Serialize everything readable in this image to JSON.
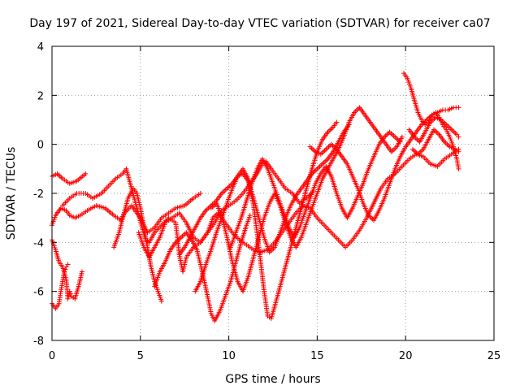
{
  "chart_data": {
    "type": "scatter",
    "title": "Day 197 of 2021, Sidereal Day-to-day VTEC variation (SDTVAR) for receiver ca07",
    "xlabel": "GPS time / hours",
    "ylabel": "SDTVAR / TECUs",
    "xlim": [
      0,
      25
    ],
    "ylim": [
      -8,
      4
    ],
    "xticks": [
      "0",
      "5",
      "10",
      "15",
      "20",
      "25"
    ],
    "yticks": [
      "-8",
      "-6",
      "-4",
      "-2",
      "0",
      "2",
      "4"
    ],
    "grid": true,
    "marker": "plus",
    "color": "#ff0000",
    "series": [
      {
        "x": [
          0.0,
          0.3,
          0.6,
          1.0,
          1.4,
          1.9
        ],
        "y": [
          -1.3,
          -1.2,
          -1.4,
          -1.6,
          -1.5,
          -1.2
        ]
      },
      {
        "x": [
          0.0,
          0.2,
          0.5,
          0.8,
          1.0,
          1.3,
          1.6,
          2.0,
          2.5,
          3.0,
          3.5,
          3.9,
          4.1,
          4.5,
          5.0,
          5.4,
          5.8,
          6.2,
          6.6,
          7.0,
          7.5,
          8.0,
          8.4
        ],
        "y": [
          -3.3,
          -2.9,
          -2.6,
          -2.7,
          -2.9,
          -3.0,
          -2.9,
          -2.7,
          -2.5,
          -2.6,
          -2.9,
          -3.1,
          -2.8,
          -2.5,
          -3.0,
          -3.6,
          -3.4,
          -3.0,
          -2.8,
          -2.6,
          -2.5,
          -2.2,
          -2.0
        ]
      },
      {
        "x": [
          0.0,
          0.2,
          0.4,
          0.6,
          0.8,
          0.9,
          1.0,
          1.1,
          1.3,
          1.5,
          1.7
        ],
        "y": [
          -3.9,
          -4.3,
          -4.8,
          -5.0,
          -5.5,
          -6.3,
          -6.0,
          -6.2,
          -6.3,
          -5.8,
          -5.2
        ]
      },
      {
        "x": [
          0.0,
          0.2,
          0.4,
          0.5,
          0.6,
          0.7,
          0.8,
          0.9
        ],
        "y": [
          -6.5,
          -6.7,
          -6.5,
          -6.0,
          -5.6,
          -5.2,
          -5.0,
          -4.9
        ]
      },
      {
        "x": [
          0.6,
          1.0,
          1.4,
          1.9,
          2.3,
          2.8,
          3.2,
          3.6,
          4.0,
          4.2,
          4.5,
          4.8,
          5.1,
          5.3,
          5.5,
          5.8,
          6.2,
          6.6,
          7.0,
          7.2,
          7.4,
          7.6,
          8.0,
          8.4,
          8.8,
          9.2,
          9.6,
          10.0,
          10.4,
          10.8,
          11.2,
          11.6,
          11.9,
          12.1,
          12.4,
          12.8,
          13.2,
          13.6,
          14.0,
          14.4,
          14.8
        ],
        "y": [
          -2.5,
          -2.2,
          -2.0,
          -2.0,
          -2.2,
          -2.0,
          -1.7,
          -1.4,
          -1.2,
          -1.0,
          -1.8,
          -2.6,
          -3.4,
          -3.9,
          -4.0,
          -3.6,
          -3.3,
          -3.0,
          -3.2,
          -4.5,
          -5.2,
          -4.6,
          -4.2,
          -4.0,
          -3.6,
          -3.2,
          -2.7,
          -2.5,
          -2.3,
          -2.0,
          -1.6,
          -1.2,
          -0.8,
          -0.7,
          -1.0,
          -1.4,
          -1.8,
          -2.0,
          -2.4,
          -2.2,
          -1.9
        ]
      },
      {
        "x": [
          3.5,
          3.8,
          4.0,
          4.3,
          4.6,
          4.8,
          5.0,
          5.2,
          5.4,
          5.6,
          5.8,
          6.0,
          6.2
        ],
        "y": [
          -4.2,
          -3.6,
          -3.0,
          -2.2,
          -1.8,
          -2.0,
          -2.6,
          -3.4,
          -4.2,
          -5.0,
          -5.6,
          -6.0,
          -6.4
        ]
      },
      {
        "x": [
          4.9,
          5.2,
          5.5,
          5.8,
          6.1,
          6.4,
          6.8,
          7.2,
          7.6,
          8.0,
          8.4,
          8.8,
          9.1,
          9.4,
          9.8,
          10.2,
          10.6,
          11.0,
          11.4,
          11.8,
          12.2,
          12.6,
          13.0,
          13.4,
          13.8,
          14.2,
          14.6,
          15.0,
          15.4,
          15.8,
          16.2,
          16.6,
          17.0,
          17.4,
          17.8,
          18.2,
          18.6,
          19.0,
          19.4,
          19.8,
          20.2,
          20.6,
          21.0,
          21.4,
          21.8,
          22.2,
          22.6,
          23.0
        ],
        "y": [
          -3.6,
          -4.2,
          -4.6,
          -4.2,
          -3.8,
          -3.2,
          -3.0,
          -2.8,
          -3.2,
          -3.8,
          -4.0,
          -3.6,
          -3.0,
          -2.8,
          -3.2,
          -3.6,
          -3.9,
          -4.1,
          -4.3,
          -4.4,
          -4.3,
          -4.0,
          -3.6,
          -3.2,
          -2.8,
          -2.5,
          -2.6,
          -3.0,
          -3.3,
          -3.6,
          -3.9,
          -4.2,
          -3.9,
          -3.5,
          -3.0,
          -2.4,
          -1.8,
          -1.4,
          -1.2,
          -0.9,
          -0.6,
          -0.4,
          -0.5,
          -0.8,
          -0.9,
          -0.6,
          -0.4,
          -0.2
        ]
      },
      {
        "x": [
          5.8,
          6.1,
          6.4,
          6.7,
          7.0,
          7.3,
          7.6,
          7.9,
          8.2,
          8.5,
          8.8,
          9.0,
          9.2,
          9.5,
          9.8,
          10.1,
          10.4,
          10.7,
          11.0,
          11.2
        ],
        "y": [
          -5.8,
          -5.2,
          -4.8,
          -4.3,
          -4.0,
          -3.8,
          -3.6,
          -3.9,
          -4.3,
          -5.2,
          -6.2,
          -6.9,
          -7.2,
          -6.8,
          -6.2,
          -5.6,
          -4.8,
          -4.0,
          -3.3,
          -2.9
        ]
      },
      {
        "x": [
          7.2,
          7.5,
          7.8,
          8.1,
          8.4,
          8.7,
          9.0,
          9.3,
          9.6,
          9.9,
          10.2,
          10.5,
          10.8,
          11.1,
          11.4,
          11.7,
          12.0,
          12.3,
          12.6,
          12.9,
          13.2,
          13.5,
          13.8,
          14.1,
          14.4,
          14.7,
          15.0,
          15.3,
          15.6,
          15.9,
          16.2,
          16.5,
          16.8
        ],
        "y": [
          -4.5,
          -4.2,
          -3.8,
          -3.4,
          -3.0,
          -2.7,
          -2.5,
          -2.3,
          -2.0,
          -1.8,
          -1.6,
          -1.3,
          -1.2,
          -1.5,
          -2.2,
          -3.0,
          -3.8,
          -4.4,
          -4.2,
          -3.6,
          -3.0,
          -2.5,
          -2.1,
          -1.8,
          -1.5,
          -1.2,
          -1.0,
          -0.8,
          -0.6,
          -0.3,
          0.1,
          0.5,
          0.8
        ]
      },
      {
        "x": [
          8.1,
          8.4,
          8.7,
          9.0,
          9.3,
          9.6,
          9.9,
          10.2,
          10.5,
          10.8,
          11.1,
          11.4,
          11.7,
          12.0,
          12.2,
          12.4,
          12.6,
          12.9,
          13.2,
          13.5,
          13.8,
          14.1,
          14.4,
          14.7,
          15.0,
          15.3,
          15.6,
          15.9,
          16.1
        ],
        "y": [
          -6.0,
          -5.6,
          -4.9,
          -4.3,
          -3.6,
          -3.0,
          -2.4,
          -1.8,
          -1.3,
          -1.0,
          -1.4,
          -2.5,
          -4.2,
          -6.0,
          -7.0,
          -7.1,
          -6.6,
          -5.8,
          -5.0,
          -4.2,
          -3.4,
          -2.6,
          -1.8,
          -1.0,
          -0.3,
          0.2,
          0.5,
          0.7,
          0.9
        ]
      },
      {
        "x": [
          9.0,
          9.3,
          9.6,
          9.9,
          10.2,
          10.5,
          10.8,
          11.1,
          11.4,
          11.7,
          12.0,
          12.3,
          12.6,
          12.9,
          13.2,
          13.5,
          13.8,
          14.1,
          14.4,
          14.7,
          15.0,
          15.3,
          15.6,
          15.9,
          16.2,
          16.5,
          16.8,
          17.1,
          17.4,
          17.7,
          18.0,
          18.3,
          18.6,
          18.9,
          19.2,
          19.5,
          19.8
        ],
        "y": [
          -2.6,
          -2.4,
          -2.9,
          -3.8,
          -4.8,
          -5.6,
          -6.0,
          -5.4,
          -4.6,
          -3.8,
          -3.0,
          -2.4,
          -2.0,
          -2.5,
          -3.2,
          -3.8,
          -4.2,
          -3.8,
          -3.2,
          -2.6,
          -2.0,
          -1.4,
          -1.0,
          -0.6,
          -0.2,
          0.3,
          0.9,
          1.3,
          1.5,
          1.2,
          0.9,
          0.6,
          0.3,
          0.0,
          -0.3,
          -0.1,
          0.3
        ]
      },
      {
        "x": [
          10.1,
          10.4,
          10.7,
          11.0,
          11.3,
          11.6,
          11.9,
          12.2,
          12.5,
          12.8,
          13.1,
          13.4,
          13.7,
          14.0,
          14.3,
          14.6,
          14.9,
          15.2,
          15.5,
          15.8,
          16.1,
          16.4,
          16.7,
          17.0,
          17.3,
          17.6,
          17.9,
          18.2,
          18.5,
          18.8,
          19.1,
          19.4,
          19.7
        ],
        "y": [
          -4.2,
          -3.6,
          -3.0,
          -2.3,
          -1.6,
          -1.0,
          -0.6,
          -1.0,
          -1.6,
          -2.2,
          -2.8,
          -3.4,
          -3.8,
          -3.4,
          -2.8,
          -2.2,
          -1.6,
          -1.2,
          -0.9,
          -1.3,
          -2.0,
          -2.6,
          -3.0,
          -2.6,
          -2.1,
          -1.6,
          -1.0,
          -0.5,
          0.0,
          0.3,
          0.5,
          0.3,
          0.1
        ]
      },
      {
        "x": [
          14.6,
          14.9,
          15.2,
          15.5,
          15.8,
          16.1,
          16.4,
          16.7,
          17.0,
          17.3,
          17.6,
          17.9,
          18.2,
          18.5,
          18.8,
          19.1,
          19.4,
          19.7,
          20.0,
          20.3,
          20.6,
          20.9,
          21.2,
          21.5,
          21.8,
          22.1,
          22.4,
          22.7,
          23.0
        ],
        "y": [
          -0.1,
          -0.3,
          -0.4,
          -0.2,
          0.0,
          -0.2,
          -0.5,
          -0.8,
          -1.3,
          -1.8,
          -2.4,
          -2.9,
          -3.1,
          -2.7,
          -2.2,
          -1.6,
          -1.0,
          -0.5,
          -0.1,
          0.2,
          0.5,
          0.8,
          1.0,
          1.2,
          1.3,
          1.4,
          1.4,
          1.5,
          1.5
        ]
      },
      {
        "x": [
          19.9,
          20.1,
          20.3,
          20.5,
          20.7,
          20.9,
          21.1,
          21.3,
          21.5,
          21.7,
          21.9,
          22.1,
          22.3,
          22.5,
          22.7,
          22.9,
          23.0
        ],
        "y": [
          2.9,
          2.7,
          2.3,
          1.8,
          1.3,
          1.0,
          0.8,
          0.9,
          1.2,
          1.3,
          1.1,
          0.8,
          0.6,
          0.3,
          -0.1,
          -0.6,
          -1.0
        ]
      },
      {
        "x": [
          20.2,
          20.5,
          20.8,
          21.1,
          21.4,
          21.7,
          22.0,
          22.3,
          22.6,
          22.9,
          23.0
        ],
        "y": [
          0.6,
          0.3,
          0.1,
          0.5,
          0.9,
          1.1,
          1.0,
          0.8,
          0.6,
          0.4,
          0.3
        ]
      },
      {
        "x": [
          20.4,
          20.7,
          21.0,
          21.3,
          21.6,
          21.9,
          22.2,
          22.5,
          22.8,
          23.0
        ],
        "y": [
          -0.2,
          -0.4,
          -0.2,
          0.2,
          0.6,
          0.4,
          0.1,
          -0.1,
          -0.2,
          -0.3
        ]
      }
    ]
  }
}
